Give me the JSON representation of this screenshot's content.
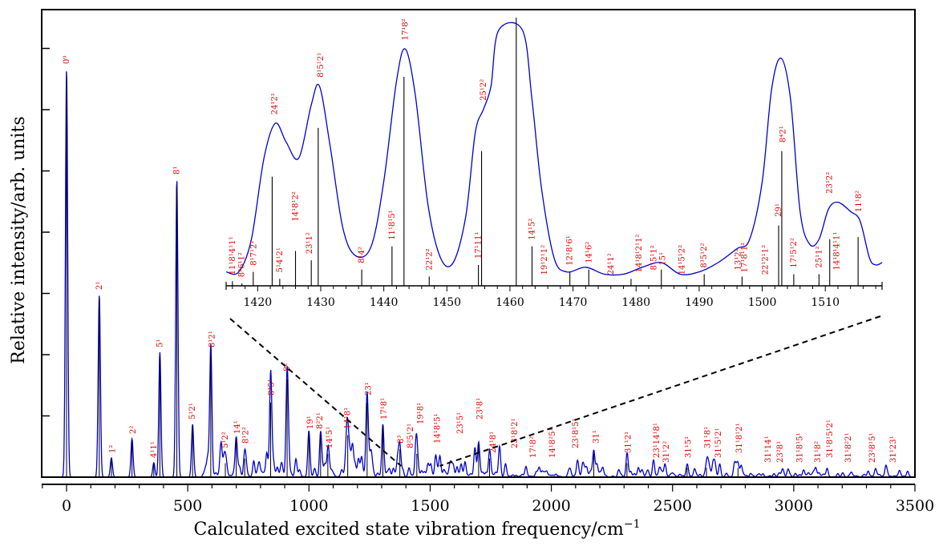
{
  "chart_data": {
    "type": "line",
    "title": "",
    "xlabel": "Calculated excited state vibration frequency/cm",
    "xlabel_superscript": "−1",
    "ylabel": "Relative intensity/arb. units",
    "xlim": [
      -100,
      3500
    ],
    "ylim": [
      0,
      1.0
    ],
    "x_ticks": [
      "0",
      "500",
      "1000",
      "1500",
      "2000",
      "2500",
      "3000",
      "3500"
    ],
    "grid": false,
    "colors": {
      "envelope": "#0000cc",
      "sticks": "#000000",
      "labels": "#e00000"
    },
    "series": [
      {
        "name": "",
        "style": "stick spectrum",
        "sticks": [
          {
            "x": 0,
            "y": 0.85
          },
          {
            "x": 135,
            "y": 0.38
          },
          {
            "x": 185,
            "y": 0.04
          },
          {
            "x": 270,
            "y": 0.08
          },
          {
            "x": 360,
            "y": 0.03
          },
          {
            "x": 385,
            "y": 0.26
          },
          {
            "x": 455,
            "y": 0.62
          },
          {
            "x": 520,
            "y": 0.11
          },
          {
            "x": 595,
            "y": 0.26
          },
          {
            "x": 655,
            "y": 0.03
          },
          {
            "x": 700,
            "y": 0.08
          },
          {
            "x": 735,
            "y": 0.04
          },
          {
            "x": 842,
            "y": 0.16
          },
          {
            "x": 910,
            "y": 0.21
          },
          {
            "x": 1000,
            "y": 0.09
          },
          {
            "x": 1048,
            "y": 0.09
          },
          {
            "x": 1078,
            "y": 0.05
          },
          {
            "x": 1160,
            "y": 0.09
          },
          {
            "x": 1240,
            "y": 0.16
          },
          {
            "x": 1305,
            "y": 0.11
          },
          {
            "x": 1375,
            "y": 0.06
          },
          {
            "x": 1445,
            "y": 0.05
          },
          {
            "x": 1700,
            "y": 0.07
          },
          {
            "x": 1745,
            "y": 0.04
          },
          {
            "x": 2175,
            "y": 0.05
          },
          {
            "x": 2312,
            "y": 0.03
          },
          {
            "x": 2560,
            "y": 0.02
          },
          {
            "x": 2640,
            "y": 0.02
          },
          {
            "x": 2770,
            "y": 0.02
          }
        ]
      }
    ],
    "peak_labels": [
      {
        "x": 0,
        "y": 0.85,
        "text": "0⁰"
      },
      {
        "x": 135,
        "y": 0.38,
        "text": "2¹"
      },
      {
        "x": 190,
        "y": 0.04,
        "text": "1²"
      },
      {
        "x": 275,
        "y": 0.08,
        "text": "2²"
      },
      {
        "x": 360,
        "y": 0.03,
        "text": "4¹1¹"
      },
      {
        "x": 385,
        "y": 0.26,
        "text": "5¹"
      },
      {
        "x": 455,
        "y": 0.62,
        "text": "8¹"
      },
      {
        "x": 520,
        "y": 0.11,
        "text": "5¹2¹"
      },
      {
        "x": 600,
        "y": 0.26,
        "text": "8¹2¹"
      },
      {
        "x": 655,
        "y": 0.05,
        "text": "5¹2²"
      },
      {
        "x": 705,
        "y": 0.08,
        "text": "14¹"
      },
      {
        "x": 740,
        "y": 0.06,
        "text": "8¹2²"
      },
      {
        "x": 845,
        "y": 0.16,
        "text": "8¹5¹"
      },
      {
        "x": 910,
        "y": 0.21,
        "text": "8²"
      },
      {
        "x": 1005,
        "y": 0.09,
        "text": "19¹"
      },
      {
        "x": 1045,
        "y": 0.09,
        "text": "8²2¹"
      },
      {
        "x": 1085,
        "y": 0.05,
        "text": "14¹5¹"
      },
      {
        "x": 1160,
        "y": 0.09,
        "text": "14¹8¹"
      },
      {
        "x": 1245,
        "y": 0.16,
        "text": "23¹"
      },
      {
        "x": 1310,
        "y": 0.11,
        "text": "17¹8¹"
      },
      {
        "x": 1380,
        "y": 0.06,
        "text": "8³"
      },
      {
        "x": 1420,
        "y": 0.05,
        "text": "8²5¹2¹"
      },
      {
        "x": 1460,
        "y": 0.1,
        "text": "19¹8¹"
      },
      {
        "x": 1530,
        "y": 0.06,
        "text": "14¹8¹5¹"
      },
      {
        "x": 1625,
        "y": 0.08,
        "text": "23¹5¹"
      },
      {
        "x": 1705,
        "y": 0.11,
        "text": "23¹8¹"
      },
      {
        "x": 1760,
        "y": 0.04,
        "text": "24¹8¹"
      },
      {
        "x": 1850,
        "y": 0.05,
        "text": "23¹8¹2¹"
      },
      {
        "x": 1925,
        "y": 0.03,
        "text": "17¹8²"
      },
      {
        "x": 2005,
        "y": 0.03,
        "text": "14¹8²5¹"
      },
      {
        "x": 2100,
        "y": 0.05,
        "text": "23¹8¹5¹"
      },
      {
        "x": 2185,
        "y": 0.06,
        "text": "31¹"
      },
      {
        "x": 2318,
        "y": 0.04,
        "text": "31¹2¹"
      },
      {
        "x": 2435,
        "y": 0.03,
        "text": "23¹14¹8¹"
      },
      {
        "x": 2475,
        "y": 0.02,
        "text": "31¹2²"
      },
      {
        "x": 2565,
        "y": 0.03,
        "text": "31¹5¹"
      },
      {
        "x": 2645,
        "y": 0.05,
        "text": "31¹8¹"
      },
      {
        "x": 2690,
        "y": 0.03,
        "text": "31¹5¹2¹"
      },
      {
        "x": 2775,
        "y": 0.04,
        "text": "31¹8¹2¹"
      },
      {
        "x": 2895,
        "y": 0.02,
        "text": "31¹14¹"
      },
      {
        "x": 2945,
        "y": 0.02,
        "text": "23²8¹"
      },
      {
        "x": 3025,
        "y": 0.02,
        "text": "31¹8¹5¹"
      },
      {
        "x": 3100,
        "y": 0.02,
        "text": "31¹8²"
      },
      {
        "x": 3150,
        "y": 0.03,
        "text": "31¹8¹5¹2¹"
      },
      {
        "x": 3225,
        "y": 0.02,
        "text": "31¹8²2¹"
      },
      {
        "x": 3325,
        "y": 0.02,
        "text": "23²8¹5¹"
      },
      {
        "x": 3410,
        "y": 0.02,
        "text": "31¹23¹"
      }
    ],
    "inset": {
      "type": "line",
      "xlim": [
        1415,
        1519
      ],
      "ylim": [
        0,
        1.0
      ],
      "x_ticks": [
        "1420",
        "1430",
        "1440",
        "1450",
        "1460",
        "1470",
        "1480",
        "1490",
        "1500",
        "1510"
      ],
      "zoom_region": [
        1380,
        1540
      ],
      "sticks": [
        {
          "x": 1416,
          "y": 0.02
        },
        {
          "x": 1417.5,
          "y": 0.01
        },
        {
          "x": 1419.3,
          "y": 0.06
        },
        {
          "x": 1422.3,
          "y": 0.47
        },
        {
          "x": 1423.5,
          "y": 0.03
        },
        {
          "x": 1426,
          "y": 0.15
        },
        {
          "x": 1428.5,
          "y": 0.11
        },
        {
          "x": 1429.6,
          "y": 0.68
        },
        {
          "x": 1436.5,
          "y": 0.07
        },
        {
          "x": 1441.3,
          "y": 0.17
        },
        {
          "x": 1443.2,
          "y": 0.9
        },
        {
          "x": 1447.2,
          "y": 0.04
        },
        {
          "x": 1455,
          "y": 0.09
        },
        {
          "x": 1455.5,
          "y": 0.58
        },
        {
          "x": 1461,
          "y": 1.4
        },
        {
          "x": 1463.5,
          "y": 0.17
        },
        {
          "x": 1469.5,
          "y": 0.06
        },
        {
          "x": 1472.5,
          "y": 0.07
        },
        {
          "x": 1479.2,
          "y": 0.03
        },
        {
          "x": 1484,
          "y": 0.07
        },
        {
          "x": 1490.8,
          "y": 0.05
        },
        {
          "x": 1496.8,
          "y": 0.04
        },
        {
          "x": 1502.6,
          "y": 0.26
        },
        {
          "x": 1503.1,
          "y": 0.58
        },
        {
          "x": 1505,
          "y": 0.05
        },
        {
          "x": 1509,
          "y": 0.05
        },
        {
          "x": 1510.7,
          "y": 0.2
        },
        {
          "x": 1515.2,
          "y": 0.21
        }
      ],
      "envelope": [
        {
          "x": 1415,
          "y": 0.06
        },
        {
          "x": 1417,
          "y": 0.06
        },
        {
          "x": 1419,
          "y": 0.2
        },
        {
          "x": 1421,
          "y": 0.55
        },
        {
          "x": 1422.8,
          "y": 0.7
        },
        {
          "x": 1424.5,
          "y": 0.62
        },
        {
          "x": 1426.5,
          "y": 0.55
        },
        {
          "x": 1428.5,
          "y": 0.78
        },
        {
          "x": 1429.8,
          "y": 0.86
        },
        {
          "x": 1431.5,
          "y": 0.6
        },
        {
          "x": 1433.5,
          "y": 0.25
        },
        {
          "x": 1435.5,
          "y": 0.13
        },
        {
          "x": 1438,
          "y": 0.17
        },
        {
          "x": 1440,
          "y": 0.45
        },
        {
          "x": 1442,
          "y": 0.88
        },
        {
          "x": 1443.4,
          "y": 1.02
        },
        {
          "x": 1445,
          "y": 0.82
        },
        {
          "x": 1447,
          "y": 0.35
        },
        {
          "x": 1449,
          "y": 0.12
        },
        {
          "x": 1451,
          "y": 0.1
        },
        {
          "x": 1453,
          "y": 0.3
        },
        {
          "x": 1454.5,
          "y": 0.66
        },
        {
          "x": 1455.8,
          "y": 0.76
        },
        {
          "x": 1457,
          "y": 0.86
        },
        {
          "x": 1458.2,
          "y": 1.1
        },
        {
          "x": 1462,
          "y": 1.1
        },
        {
          "x": 1463.5,
          "y": 0.8
        },
        {
          "x": 1465,
          "y": 0.42
        },
        {
          "x": 1467,
          "y": 0.12
        },
        {
          "x": 1469,
          "y": 0.06
        },
        {
          "x": 1472,
          "y": 0.08
        },
        {
          "x": 1475,
          "y": 0.05
        },
        {
          "x": 1478,
          "y": 0.05
        },
        {
          "x": 1481,
          "y": 0.08
        },
        {
          "x": 1484,
          "y": 0.1
        },
        {
          "x": 1487,
          "y": 0.05
        },
        {
          "x": 1490,
          "y": 0.06
        },
        {
          "x": 1493,
          "y": 0.1
        },
        {
          "x": 1496,
          "y": 0.16
        },
        {
          "x": 1498,
          "y": 0.2
        },
        {
          "x": 1500,
          "y": 0.45
        },
        {
          "x": 1501.5,
          "y": 0.85
        },
        {
          "x": 1503,
          "y": 0.98
        },
        {
          "x": 1504.5,
          "y": 0.8
        },
        {
          "x": 1506,
          "y": 0.32
        },
        {
          "x": 1507.5,
          "y": 0.18
        },
        {
          "x": 1509,
          "y": 0.2
        },
        {
          "x": 1510.5,
          "y": 0.33
        },
        {
          "x": 1512,
          "y": 0.36
        },
        {
          "x": 1514,
          "y": 0.32
        },
        {
          "x": 1515.5,
          "y": 0.28
        },
        {
          "x": 1517,
          "y": 0.12
        },
        {
          "x": 1518,
          "y": 0.09
        },
        {
          "x": 1519,
          "y": 0.1
        }
      ],
      "peak_labels": [
        {
          "x": 1416,
          "y": 0.03,
          "text": "11¹8¹4¹1¹"
        },
        {
          "x": 1417.5,
          "y": 0.02,
          "text": "8²6¹1²"
        },
        {
          "x": 1419.4,
          "y": 0.07,
          "text": "8¹7¹2¹"
        },
        {
          "x": 1422.7,
          "y": 0.72,
          "text": "24¹2¹"
        },
        {
          "x": 1423.5,
          "y": 0.04,
          "text": "5¹4¹2¹"
        },
        {
          "x": 1426,
          "y": 0.26,
          "text": "14¹8¹2²"
        },
        {
          "x": 1428.2,
          "y": 0.12,
          "text": "23¹1²"
        },
        {
          "x": 1430,
          "y": 0.88,
          "text": "8¹5¹2¹"
        },
        {
          "x": 1436.5,
          "y": 0.08,
          "text": "8¹4²"
        },
        {
          "x": 1441.3,
          "y": 0.18,
          "text": "11¹8¹5¹"
        },
        {
          "x": 1443.4,
          "y": 1.04,
          "text": "17¹8²"
        },
        {
          "x": 1447.2,
          "y": 0.05,
          "text": "22¹2²"
        },
        {
          "x": 1455,
          "y": 0.1,
          "text": "17¹11¹"
        },
        {
          "x": 1455.8,
          "y": 0.78,
          "text": "25¹2²"
        },
        {
          "x": 1463.5,
          "y": 0.18,
          "text": "14¹5²"
        },
        {
          "x": 1465.5,
          "y": 0.03,
          "text": "19¹2¹1²"
        },
        {
          "x": 1469.5,
          "y": 0.07,
          "text": "12¹8¹6¹"
        },
        {
          "x": 1472.5,
          "y": 0.08,
          "text": "14¹6²"
        },
        {
          "x": 1476,
          "y": 0.03,
          "text": "24¹1²"
        },
        {
          "x": 1480.5,
          "y": 0.04,
          "text": "14¹8¹2¹1²"
        },
        {
          "x": 1482.8,
          "y": 0.05,
          "text": "8¹5¹1²"
        },
        {
          "x": 1484.2,
          "y": 0.07,
          "text": "15¹"
        },
        {
          "x": 1487.3,
          "y": 0.03,
          "text": "14¹5¹2²"
        },
        {
          "x": 1490.8,
          "y": 0.06,
          "text": "8³5¹2²"
        },
        {
          "x": 1496.2,
          "y": 0.05,
          "text": "13¹2²"
        },
        {
          "x": 1497.2,
          "y": 0.04,
          "text": "17¹8¹1²"
        },
        {
          "x": 1500.5,
          "y": 0.03,
          "text": "22¹2¹1²"
        },
        {
          "x": 1502.6,
          "y": 0.28,
          "text": "29¹"
        },
        {
          "x": 1503.3,
          "y": 0.6,
          "text": "8⁴2¹"
        },
        {
          "x": 1505,
          "y": 0.06,
          "text": "17¹5¹2²"
        },
        {
          "x": 1509,
          "y": 0.06,
          "text": "25¹1²"
        },
        {
          "x": 1510.7,
          "y": 0.38,
          "text": "23¹2²"
        },
        {
          "x": 1511.8,
          "y": 0.05,
          "text": "14¹8¹4¹1¹"
        },
        {
          "x": 1515.3,
          "y": 0.3,
          "text": "11¹8²"
        }
      ]
    }
  }
}
